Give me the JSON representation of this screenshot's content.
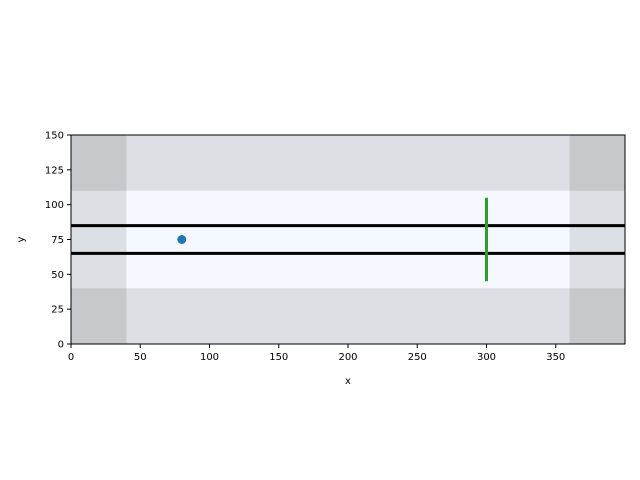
{
  "chart_data": {
    "type": "scatter",
    "title": "",
    "xlabel": "x",
    "ylabel": "y",
    "xlim": [
      0,
      400
    ],
    "ylim": [
      0,
      150
    ],
    "grid": false,
    "x_ticks": [
      0,
      50,
      100,
      150,
      200,
      250,
      300,
      350
    ],
    "y_ticks": [
      0,
      25,
      50,
      75,
      100,
      125,
      150
    ],
    "regions": [
      {
        "name": "outer-band",
        "x": [
          0,
          400
        ],
        "y": [
          0,
          150
        ],
        "color": "#dcdfe3"
      },
      {
        "name": "left-corner-bottom",
        "x": [
          0,
          40
        ],
        "y": [
          0,
          40
        ],
        "color": "#c5c9cc"
      },
      {
        "name": "left-corner-top",
        "x": [
          0,
          40
        ],
        "y": [
          110,
          150
        ],
        "color": "#c5c9cc"
      },
      {
        "name": "right-corner-bottom",
        "x": [
          360,
          400
        ],
        "y": [
          0,
          40
        ],
        "color": "#c5c9cc"
      },
      {
        "name": "right-corner-top",
        "x": [
          360,
          400
        ],
        "y": [
          110,
          150
        ],
        "color": "#c5c9cc"
      },
      {
        "name": "inner-lane",
        "x": [
          40,
          360
        ],
        "y": [
          40,
          110
        ],
        "color": "#f5f9ff"
      }
    ],
    "lines": [
      {
        "name": "lane-line-upper",
        "x": [
          0,
          400
        ],
        "y": [
          85,
          85
        ],
        "color": "#000000",
        "width": 3
      },
      {
        "name": "lane-line-lower",
        "x": [
          0,
          400
        ],
        "y": [
          65,
          65
        ],
        "color": "#000000",
        "width": 3
      },
      {
        "name": "green-marker",
        "x": [
          300,
          300
        ],
        "y": [
          45,
          105
        ],
        "color": "#2ca02c",
        "width": 3
      }
    ],
    "points": [
      {
        "x": 80,
        "y": 75,
        "color": "#1f77b4"
      }
    ]
  }
}
